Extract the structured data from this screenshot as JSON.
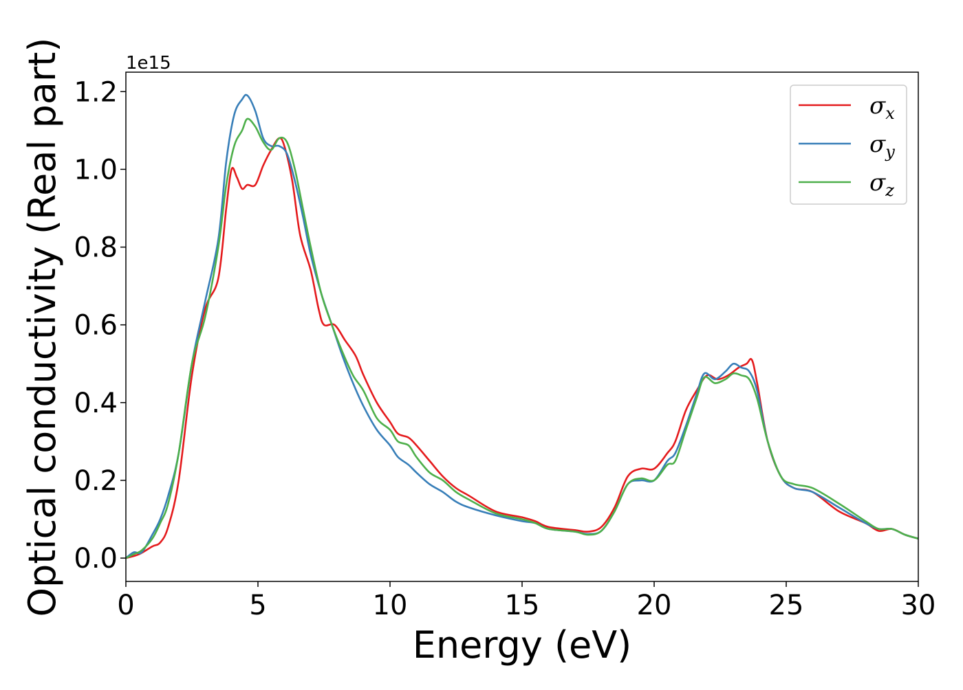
{
  "chart_data": {
    "type": "line",
    "xlabel": "Energy (eV)",
    "ylabel": "Optical conductivity (Real part)",
    "y_offset_label": "1e15",
    "y_scale_factor": 1000000000000000.0,
    "xlim": [
      0,
      30
    ],
    "ylim": [
      -0.06,
      1.25
    ],
    "x_ticks": [
      0,
      5,
      10,
      15,
      20,
      25,
      30
    ],
    "x_tick_labels": [
      "0",
      "5",
      "10",
      "15",
      "20",
      "25",
      "30"
    ],
    "y_ticks": [
      0.0,
      0.2,
      0.4,
      0.6,
      0.8,
      1.0,
      1.2
    ],
    "y_tick_labels": [
      "0.0",
      "0.2",
      "0.4",
      "0.6",
      "0.8",
      "1.0",
      "1.2"
    ],
    "grid": false,
    "legend_position": "top-right",
    "series": [
      {
        "name": "σ",
        "subscript": "x",
        "color": "#e41a1c",
        "points": [
          [
            0.0,
            0.0
          ],
          [
            0.5,
            0.01
          ],
          [
            1.0,
            0.03
          ],
          [
            1.3,
            0.04
          ],
          [
            1.6,
            0.08
          ],
          [
            2.0,
            0.2
          ],
          [
            2.5,
            0.47
          ],
          [
            3.0,
            0.64
          ],
          [
            3.5,
            0.72
          ],
          [
            3.8,
            0.9
          ],
          [
            4.0,
            1.0
          ],
          [
            4.2,
            0.98
          ],
          [
            4.4,
            0.95
          ],
          [
            4.6,
            0.96
          ],
          [
            4.9,
            0.96
          ],
          [
            5.2,
            1.01
          ],
          [
            5.5,
            1.05
          ],
          [
            5.8,
            1.08
          ],
          [
            6.0,
            1.06
          ],
          [
            6.3,
            0.97
          ],
          [
            6.6,
            0.83
          ],
          [
            7.0,
            0.74
          ],
          [
            7.3,
            0.64
          ],
          [
            7.5,
            0.6
          ],
          [
            7.9,
            0.6
          ],
          [
            8.3,
            0.56
          ],
          [
            8.7,
            0.52
          ],
          [
            9.0,
            0.47
          ],
          [
            9.5,
            0.4
          ],
          [
            10.0,
            0.35
          ],
          [
            10.3,
            0.32
          ],
          [
            10.7,
            0.31
          ],
          [
            11.0,
            0.29
          ],
          [
            11.5,
            0.25
          ],
          [
            12.0,
            0.21
          ],
          [
            12.5,
            0.18
          ],
          [
            13.0,
            0.16
          ],
          [
            14.0,
            0.12
          ],
          [
            15.0,
            0.105
          ],
          [
            15.5,
            0.095
          ],
          [
            16.0,
            0.08
          ],
          [
            17.0,
            0.072
          ],
          [
            17.5,
            0.068
          ],
          [
            18.0,
            0.08
          ],
          [
            18.5,
            0.13
          ],
          [
            19.0,
            0.21
          ],
          [
            19.5,
            0.23
          ],
          [
            20.0,
            0.23
          ],
          [
            20.5,
            0.27
          ],
          [
            20.8,
            0.3
          ],
          [
            21.2,
            0.38
          ],
          [
            21.6,
            0.43
          ],
          [
            22.0,
            0.47
          ],
          [
            22.4,
            0.46
          ],
          [
            22.8,
            0.47
          ],
          [
            23.2,
            0.49
          ],
          [
            23.5,
            0.5
          ],
          [
            23.7,
            0.51
          ],
          [
            23.9,
            0.45
          ],
          [
            24.3,
            0.3
          ],
          [
            24.8,
            0.21
          ],
          [
            25.3,
            0.18
          ],
          [
            26.0,
            0.17
          ],
          [
            27.0,
            0.12
          ],
          [
            28.0,
            0.09
          ],
          [
            28.5,
            0.07
          ],
          [
            29.0,
            0.075
          ],
          [
            29.5,
            0.06
          ],
          [
            30.0,
            0.05
          ]
        ]
      },
      {
        "name": "σ",
        "subscript": "y",
        "color": "#377eb8",
        "points": [
          [
            0.0,
            0.0
          ],
          [
            0.3,
            0.015
          ],
          [
            0.6,
            0.015
          ],
          [
            1.0,
            0.06
          ],
          [
            1.3,
            0.1
          ],
          [
            1.6,
            0.16
          ],
          [
            2.0,
            0.27
          ],
          [
            2.5,
            0.5
          ],
          [
            3.0,
            0.66
          ],
          [
            3.5,
            0.82
          ],
          [
            3.8,
            1.02
          ],
          [
            4.1,
            1.14
          ],
          [
            4.4,
            1.18
          ],
          [
            4.6,
            1.19
          ],
          [
            4.9,
            1.15
          ],
          [
            5.2,
            1.08
          ],
          [
            5.5,
            1.06
          ],
          [
            5.8,
            1.06
          ],
          [
            6.1,
            1.04
          ],
          [
            6.4,
            0.97
          ],
          [
            6.7,
            0.88
          ],
          [
            7.0,
            0.78
          ],
          [
            7.4,
            0.68
          ],
          [
            7.8,
            0.6
          ],
          [
            8.2,
            0.52
          ],
          [
            8.6,
            0.45
          ],
          [
            9.0,
            0.39
          ],
          [
            9.5,
            0.33
          ],
          [
            10.0,
            0.29
          ],
          [
            10.3,
            0.26
          ],
          [
            10.7,
            0.24
          ],
          [
            11.0,
            0.22
          ],
          [
            11.5,
            0.19
          ],
          [
            12.0,
            0.17
          ],
          [
            12.5,
            0.145
          ],
          [
            13.0,
            0.13
          ],
          [
            14.0,
            0.11
          ],
          [
            15.0,
            0.095
          ],
          [
            15.5,
            0.09
          ],
          [
            16.0,
            0.075
          ],
          [
            17.0,
            0.068
          ],
          [
            17.5,
            0.062
          ],
          [
            18.0,
            0.07
          ],
          [
            18.5,
            0.12
          ],
          [
            19.0,
            0.19
          ],
          [
            19.5,
            0.2
          ],
          [
            20.0,
            0.2
          ],
          [
            20.5,
            0.25
          ],
          [
            20.8,
            0.27
          ],
          [
            21.2,
            0.34
          ],
          [
            21.6,
            0.42
          ],
          [
            21.9,
            0.475
          ],
          [
            22.3,
            0.46
          ],
          [
            22.7,
            0.48
          ],
          [
            23.0,
            0.5
          ],
          [
            23.3,
            0.49
          ],
          [
            23.6,
            0.48
          ],
          [
            23.9,
            0.43
          ],
          [
            24.3,
            0.3
          ],
          [
            24.8,
            0.21
          ],
          [
            25.3,
            0.18
          ],
          [
            26.0,
            0.17
          ],
          [
            27.0,
            0.13
          ],
          [
            28.0,
            0.09
          ],
          [
            28.5,
            0.075
          ],
          [
            29.0,
            0.075
          ],
          [
            29.5,
            0.06
          ],
          [
            30.0,
            0.05
          ]
        ]
      },
      {
        "name": "σ",
        "subscript": "z",
        "color": "#4daf4a",
        "points": [
          [
            0.0,
            0.0
          ],
          [
            0.3,
            0.01
          ],
          [
            0.6,
            0.02
          ],
          [
            1.0,
            0.05
          ],
          [
            1.3,
            0.09
          ],
          [
            1.6,
            0.14
          ],
          [
            2.0,
            0.27
          ],
          [
            2.5,
            0.5
          ],
          [
            3.0,
            0.62
          ],
          [
            3.5,
            0.8
          ],
          [
            3.8,
            0.96
          ],
          [
            4.1,
            1.06
          ],
          [
            4.4,
            1.1
          ],
          [
            4.6,
            1.13
          ],
          [
            4.9,
            1.11
          ],
          [
            5.2,
            1.07
          ],
          [
            5.5,
            1.05
          ],
          [
            5.8,
            1.08
          ],
          [
            6.1,
            1.07
          ],
          [
            6.4,
            1.0
          ],
          [
            6.7,
            0.9
          ],
          [
            7.0,
            0.8
          ],
          [
            7.4,
            0.68
          ],
          [
            7.8,
            0.6
          ],
          [
            8.2,
            0.53
          ],
          [
            8.6,
            0.47
          ],
          [
            9.0,
            0.43
          ],
          [
            9.5,
            0.36
          ],
          [
            10.0,
            0.33
          ],
          [
            10.3,
            0.3
          ],
          [
            10.7,
            0.29
          ],
          [
            11.0,
            0.26
          ],
          [
            11.5,
            0.22
          ],
          [
            12.0,
            0.2
          ],
          [
            12.5,
            0.17
          ],
          [
            13.0,
            0.15
          ],
          [
            14.0,
            0.115
          ],
          [
            15.0,
            0.1
          ],
          [
            15.5,
            0.09
          ],
          [
            16.0,
            0.075
          ],
          [
            17.0,
            0.068
          ],
          [
            17.5,
            0.06
          ],
          [
            18.0,
            0.07
          ],
          [
            18.5,
            0.12
          ],
          [
            19.0,
            0.19
          ],
          [
            19.5,
            0.205
          ],
          [
            20.0,
            0.2
          ],
          [
            20.5,
            0.24
          ],
          [
            20.8,
            0.25
          ],
          [
            21.2,
            0.33
          ],
          [
            21.6,
            0.41
          ],
          [
            21.9,
            0.465
          ],
          [
            22.3,
            0.45
          ],
          [
            22.7,
            0.46
          ],
          [
            23.0,
            0.475
          ],
          [
            23.3,
            0.47
          ],
          [
            23.6,
            0.46
          ],
          [
            23.9,
            0.41
          ],
          [
            24.3,
            0.3
          ],
          [
            24.8,
            0.21
          ],
          [
            25.3,
            0.19
          ],
          [
            26.0,
            0.18
          ],
          [
            27.0,
            0.14
          ],
          [
            28.0,
            0.095
          ],
          [
            28.5,
            0.075
          ],
          [
            29.0,
            0.075
          ],
          [
            29.5,
            0.06
          ],
          [
            30.0,
            0.05
          ]
        ]
      }
    ]
  }
}
